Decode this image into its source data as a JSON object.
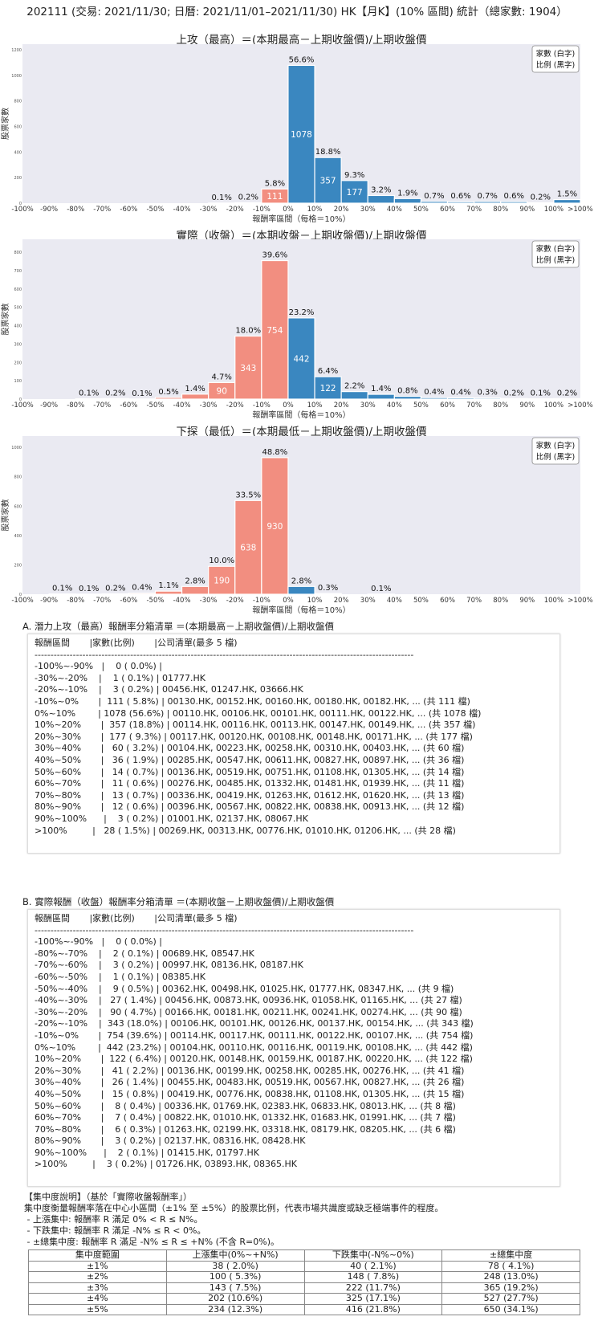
{
  "header": {
    "title": "202111 (交易: 2021/11/30; 日曆: 2021/11/01–2021/11/30) HK【月K】(10% 區間) 統計（總家數: 1904）"
  },
  "chart_data": [
    {
      "type": "bar",
      "title": "上攻（最高）＝(本期最高－上期收盤價)/上期收盤價",
      "xlabel": "報酬率區間（每格＝10%）",
      "ylabel": "股票家數",
      "x_ticks": [
        "-100%",
        "-90%",
        "-80%",
        "-70%",
        "-60%",
        "-50%",
        "-40%",
        "-30%",
        "-20%",
        "-10%",
        "0%",
        "10%",
        "20%",
        "30%",
        "40%",
        "50%",
        "60%",
        "70%",
        "80%",
        "90%",
        "100%",
        ">100%"
      ],
      "values": [
        0,
        0,
        0,
        0,
        0,
        0,
        0,
        1,
        3,
        111,
        1078,
        357,
        177,
        60,
        36,
        14,
        11,
        13,
        12,
        3,
        28
      ],
      "pct_labels": [
        "",
        "",
        "",
        "",
        "",
        "",
        "",
        "0.1%",
        "0.2%",
        "5.8%",
        "56.6%",
        "18.8%",
        "9.3%",
        "3.2%",
        "1.9%",
        "0.7%",
        "0.6%",
        "0.7%",
        "0.6%",
        "0.2%",
        "1.5%"
      ],
      "ylim": [
        0,
        1244
      ],
      "y_ticks": [
        0,
        200,
        400,
        600,
        800,
        1000,
        1200
      ],
      "legend": [
        "家數 (白字)",
        "比例 (黑字)"
      ],
      "legend_position": "top-right",
      "grid": false,
      "colors": {
        "negative": "#f28e80",
        "positive": "#3a87c0",
        "background": "#eaeaf2"
      }
    },
    {
      "type": "bar",
      "title": "實際（收盤）＝(本期收盤－上期收盤價)/上期收盤價",
      "xlabel": "報酬率區間（每格＝10%）",
      "ylabel": "股票家數",
      "x_ticks": [
        "-100%",
        "-90%",
        "-80%",
        "-70%",
        "-60%",
        "-50%",
        "-40%",
        "-30%",
        "-20%",
        "-10%",
        "0%",
        "10%",
        "20%",
        "30%",
        "40%",
        "50%",
        "60%",
        "70%",
        "80%",
        "90%",
        "100%",
        ">100%"
      ],
      "values": [
        0,
        0,
        2,
        3,
        1,
        9,
        27,
        90,
        343,
        754,
        442,
        122,
        41,
        26,
        15,
        8,
        7,
        6,
        3,
        2,
        3
      ],
      "pct_labels": [
        "",
        "",
        "0.1%",
        "0.2%",
        "0.1%",
        "0.5%",
        "1.4%",
        "4.7%",
        "18.0%",
        "39.6%",
        "23.2%",
        "6.4%",
        "2.2%",
        "1.4%",
        "0.8%",
        "0.4%",
        "0.4%",
        "0.3%",
        "0.2%",
        "0.1%",
        "0.2%"
      ],
      "ylim": [
        0,
        870
      ],
      "y_ticks": [
        0,
        100,
        200,
        300,
        400,
        500,
        600,
        700,
        800
      ],
      "legend": [
        "家數 (白字)",
        "比例 (黑字)"
      ],
      "legend_position": "top-right",
      "grid": false,
      "colors": {
        "negative": "#f28e80",
        "positive": "#3a87c0",
        "background": "#eaeaf2"
      }
    },
    {
      "type": "bar",
      "title": "下探（最低）＝(本期最低－上期收盤價)/上期收盤價",
      "xlabel": "報酬率區間（每格＝10%）",
      "ylabel": "股票家數",
      "x_ticks": [
        "-100%",
        "-90%",
        "-80%",
        "-70%",
        "-60%",
        "-50%",
        "-40%",
        "-30%",
        "-20%",
        "-10%",
        "0%",
        "10%",
        "20%",
        "30%",
        "40%",
        "50%",
        "60%",
        "70%",
        "80%",
        "90%",
        "100%",
        ">100%"
      ],
      "values": [
        0,
        2,
        1,
        3,
        7,
        21,
        53,
        190,
        638,
        930,
        53,
        5,
        0,
        1,
        0,
        0,
        0,
        0,
        0,
        0,
        0
      ],
      "pct_labels": [
        "",
        "0.1%",
        "0.1%",
        "0.2%",
        "0.4%",
        "1.1%",
        "2.8%",
        "10.0%",
        "33.5%",
        "48.8%",
        "2.8%",
        "0.3%",
        "",
        "0.1%",
        "",
        "",
        "",
        "",
        "",
        "",
        ""
      ],
      "ylim": [
        0,
        1077
      ],
      "y_ticks": [
        0,
        200,
        400,
        600,
        800,
        1000
      ],
      "legend": [
        "家數 (白字)",
        "比例 (黑字)"
      ],
      "legend_position": "top-right",
      "grid": false,
      "colors": {
        "negative": "#f28e80",
        "positive": "#3a87c0",
        "background": "#eaeaf2"
      }
    }
  ],
  "section_a": {
    "heading": "A. 潛力上攻（最高）報酬率分箱清單 ＝(本期最高－上期收盤價)/上期收盤價",
    "lines": [
      "報酬區間       |家數(比例)       |公司清單(最多 5 檔)",
      "-----------------------------------------------------------------------------------------------------------------------",
      "-100%~-90%   |    0 ( 0.0%) |",
      "-30%~-20%    |    1 ( 0.1%) | 01777.HK",
      "-20%~-10%    |    3 ( 0.2%) | 00456.HK, 01247.HK, 03666.HK",
      "-10%~0%       |  111 ( 5.8%) | 00130.HK, 00152.HK, 00160.HK, 00180.HK, 00182.HK, ... (共 111 檔)",
      "0%~10%        | 1078 (56.6%) | 00110.HK, 00106.HK, 00101.HK, 00111.HK, 00122.HK, ... (共 1078 檔)",
      "10%~20%       |  357 (18.8%) | 00114.HK, 00116.HK, 00113.HK, 00147.HK, 00149.HK, ... (共 357 檔)",
      "20%~30%       |  177 ( 9.3%) | 00117.HK, 00120.HK, 00108.HK, 00148.HK, 00171.HK, ... (共 177 檔)",
      "30%~40%       |   60 ( 3.2%) | 00104.HK, 00223.HK, 00258.HK, 00310.HK, 00403.HK, ... (共 60 檔)",
      "40%~50%       |   36 ( 1.9%) | 00285.HK, 00547.HK, 00611.HK, 00827.HK, 00897.HK, ... (共 36 檔)",
      "50%~60%       |   14 ( 0.7%) | 00136.HK, 00519.HK, 00751.HK, 01108.HK, 01305.HK, ... (共 14 檔)",
      "60%~70%       |   11 ( 0.6%) | 00276.HK, 00485.HK, 01332.HK, 01481.HK, 01939.HK, ... (共 11 檔)",
      "70%~80%       |   13 ( 0.7%) | 00336.HK, 00419.HK, 01263.HK, 01612.HK, 01620.HK, ... (共 13 檔)",
      "80%~90%       |   12 ( 0.6%) | 00396.HK, 00567.HK, 00822.HK, 00838.HK, 00913.HK, ... (共 12 檔)",
      "90%~100%      |    3 ( 0.2%) | 01001.HK, 02137.HK, 08067.HK",
      ">100%         |   28 ( 1.5%) | 00269.HK, 00313.HK, 00776.HK, 01010.HK, 01206.HK, ... (共 28 檔)"
    ]
  },
  "section_b": {
    "heading": "B. 實際報酬（收盤）報酬率分箱清單 ＝(本期收盤－上期收盤價)/上期收盤價",
    "lines": [
      "報酬區間       |家數(比例)       |公司清單(最多 5 檔)",
      "-----------------------------------------------------------------------------------------------------------------------",
      "-100%~-90%   |    0 ( 0.0%) |",
      "-80%~-70%    |    2 ( 0.1%) | 00689.HK, 08547.HK",
      "-70%~-60%    |    3 ( 0.2%) | 00997.HK, 08136.HK, 08187.HK",
      "-60%~-50%    |    1 ( 0.1%) | 08385.HK",
      "-50%~-40%    |    9 ( 0.5%) | 00362.HK, 00498.HK, 01025.HK, 01777.HK, 08347.HK, ... (共 9 檔)",
      "-40%~-30%    |   27 ( 1.4%) | 00456.HK, 00873.HK, 00936.HK, 01058.HK, 01165.HK, ... (共 27 檔)",
      "-30%~-20%    |   90 ( 4.7%) | 00166.HK, 00181.HK, 00211.HK, 00241.HK, 00274.HK, ... (共 90 檔)",
      "-20%~-10%    |  343 (18.0%) | 00106.HK, 00101.HK, 00126.HK, 00137.HK, 00154.HK, ... (共 343 檔)",
      "-10%~0%       |  754 (39.6%) | 00114.HK, 00117.HK, 00111.HK, 00122.HK, 00107.HK, ... (共 754 檔)",
      "0%~10%        |  442 (23.2%) | 00104.HK, 00110.HK, 00116.HK, 00119.HK, 00108.HK, ... (共 442 檔)",
      "10%~20%       |  122 ( 6.4%) | 00120.HK, 00148.HK, 00159.HK, 00187.HK, 00220.HK, ... (共 122 檔)",
      "20%~30%       |   41 ( 2.2%) | 00136.HK, 00199.HK, 00258.HK, 00285.HK, 00276.HK, ... (共 41 檔)",
      "30%~40%       |   26 ( 1.4%) | 00455.HK, 00483.HK, 00519.HK, 00567.HK, 00827.HK, ... (共 26 檔)",
      "40%~50%       |   15 ( 0.8%) | 00419.HK, 00776.HK, 00838.HK, 01108.HK, 01305.HK, ... (共 15 檔)",
      "50%~60%       |    8 ( 0.4%) | 00336.HK, 01769.HK, 02383.HK, 06833.HK, 08013.HK, ... (共 8 檔)",
      "60%~70%       |    7 ( 0.4%) | 00822.HK, 01010.HK, 01332.HK, 01683.HK, 01991.HK, ... (共 7 檔)",
      "70%~80%       |    6 ( 0.3%) | 01263.HK, 02199.HK, 03318.HK, 08179.HK, 08205.HK, ... (共 6 檔)",
      "80%~90%       |    3 ( 0.2%) | 02137.HK, 08316.HK, 08428.HK",
      "90%~100%      |    2 ( 0.1%) | 01415.HK, 01797.HK",
      ">100%         |    3 ( 0.2%) | 01726.HK, 03893.HK, 08365.HK"
    ]
  },
  "concentration": {
    "notes": [
      "【集中度說明】（基於「實際收盤報酬率」）",
      "集中度衡量報酬率落在中心小區間（±1% 至 ±5%）的股票比例，代表市場共識度或缺乏極端事件的程度。",
      " - 上漲集中: 報酬率 R 滿足 0% < R ≤ N%。",
      " - 下跌集中: 報酬率 R 滿足 -N% ≤ R < 0%。",
      " - ±總集中度: 報酬率 R 滿足 -N% ≤ R ≤ +N% (不含 R=0%)。"
    ],
    "columns": [
      "集中度範圍",
      "上漲集中(0%~+N%)",
      "下跌集中(-N%~0%)",
      "±總集中度"
    ],
    "rows": [
      [
        "±1%",
        "38 ( 2.0%)",
        "40 ( 2.1%)",
        "78 ( 4.1%)"
      ],
      [
        "±2%",
        "100 ( 5.3%)",
        "148 ( 7.8%)",
        "248 (13.0%)"
      ],
      [
        "±3%",
        "143 ( 7.5%)",
        "222 (11.7%)",
        "365 (19.2%)"
      ],
      [
        "±4%",
        "202 (10.6%)",
        "325 (17.1%)",
        "527 (27.7%)"
      ],
      [
        "±5%",
        "234 (12.3%)",
        "416 (21.8%)",
        "650 (34.1%)"
      ]
    ]
  }
}
